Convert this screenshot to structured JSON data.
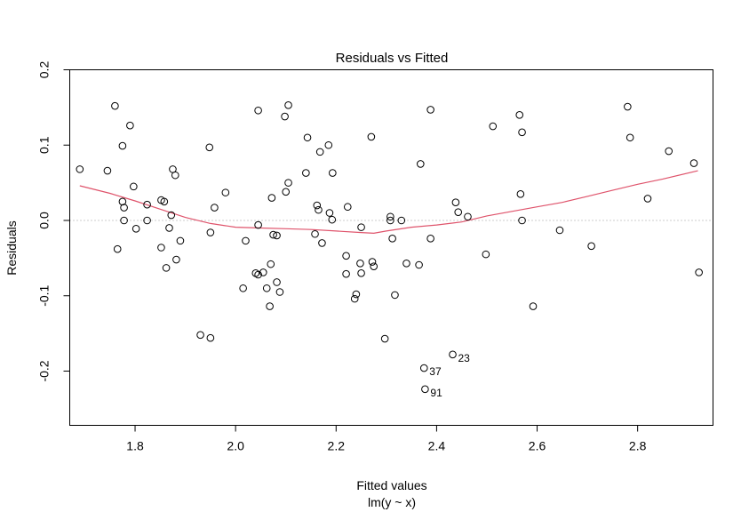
{
  "chart_data": {
    "type": "scatter",
    "title": "Residuals vs Fitted",
    "xlabel": "Fitted values",
    "subtitle": "lm(y ~ x)",
    "ylabel": "Residuals",
    "xlim": [
      1.67,
      2.95
    ],
    "ylim": [
      -0.272,
      0.2
    ],
    "xticks": [
      1.8,
      2.0,
      2.2,
      2.4,
      2.6,
      2.8
    ],
    "xtick_labels": [
      "1.8",
      "2.0",
      "2.2",
      "2.4",
      "2.6",
      "2.8"
    ],
    "yticks": [
      -0.2,
      -0.1,
      0.0,
      0.1,
      0.2
    ],
    "ytick_labels": [
      "-0.2",
      "-0.1",
      "0.0",
      "0.1",
      "0.2"
    ],
    "reference_line": {
      "y": 0,
      "style": "dotted",
      "color": "#999999"
    },
    "smoother_color": "#DF536B",
    "points": [
      {
        "x": 1.69,
        "y": 0.068
      },
      {
        "x": 1.745,
        "y": 0.066
      },
      {
        "x": 1.76,
        "y": 0.152
      },
      {
        "x": 1.765,
        "y": -0.038
      },
      {
        "x": 1.775,
        "y": 0.099
      },
      {
        "x": 1.775,
        "y": 0.025
      },
      {
        "x": 1.778,
        "y": 0.017
      },
      {
        "x": 1.778,
        "y": 0.0
      },
      {
        "x": 1.79,
        "y": 0.126
      },
      {
        "x": 1.797,
        "y": 0.045
      },
      {
        "x": 1.802,
        "y": -0.011
      },
      {
        "x": 1.824,
        "y": 0.021
      },
      {
        "x": 1.824,
        "y": 0.0
      },
      {
        "x": 1.852,
        "y": 0.027
      },
      {
        "x": 1.852,
        "y": -0.036
      },
      {
        "x": 1.858,
        "y": 0.025
      },
      {
        "x": 1.862,
        "y": -0.063
      },
      {
        "x": 1.868,
        "y": -0.01
      },
      {
        "x": 1.872,
        "y": 0.007
      },
      {
        "x": 1.875,
        "y": 0.068
      },
      {
        "x": 1.88,
        "y": 0.06
      },
      {
        "x": 1.882,
        "y": -0.052
      },
      {
        "x": 1.89,
        "y": -0.027
      },
      {
        "x": 1.93,
        "y": -0.152
      },
      {
        "x": 1.948,
        "y": 0.097
      },
      {
        "x": 1.95,
        "y": -0.016
      },
      {
        "x": 1.95,
        "y": -0.156
      },
      {
        "x": 1.958,
        "y": 0.017
      },
      {
        "x": 1.98,
        "y": 0.037
      },
      {
        "x": 2.015,
        "y": -0.09
      },
      {
        "x": 2.02,
        "y": -0.027
      },
      {
        "x": 2.04,
        "y": -0.07
      },
      {
        "x": 2.045,
        "y": -0.072
      },
      {
        "x": 2.045,
        "y": 0.146
      },
      {
        "x": 2.045,
        "y": -0.006
      },
      {
        "x": 2.055,
        "y": -0.069
      },
      {
        "x": 2.062,
        "y": -0.09
      },
      {
        "x": 2.068,
        "y": -0.114
      },
      {
        "x": 2.07,
        "y": -0.058
      },
      {
        "x": 2.072,
        "y": 0.03
      },
      {
        "x": 2.075,
        "y": -0.019
      },
      {
        "x": 2.082,
        "y": -0.02
      },
      {
        "x": 2.082,
        "y": -0.082
      },
      {
        "x": 2.088,
        "y": -0.095
      },
      {
        "x": 2.098,
        "y": 0.138
      },
      {
        "x": 2.1,
        "y": 0.038
      },
      {
        "x": 2.105,
        "y": 0.05
      },
      {
        "x": 2.105,
        "y": 0.153
      },
      {
        "x": 2.14,
        "y": 0.063
      },
      {
        "x": 2.143,
        "y": 0.11
      },
      {
        "x": 2.158,
        "y": -0.018
      },
      {
        "x": 2.162,
        "y": 0.02
      },
      {
        "x": 2.165,
        "y": 0.014
      },
      {
        "x": 2.168,
        "y": 0.091
      },
      {
        "x": 2.172,
        "y": -0.03
      },
      {
        "x": 2.185,
        "y": 0.1
      },
      {
        "x": 2.187,
        "y": 0.01
      },
      {
        "x": 2.192,
        "y": 0.001
      },
      {
        "x": 2.193,
        "y": 0.063
      },
      {
        "x": 2.22,
        "y": -0.047
      },
      {
        "x": 2.22,
        "y": -0.071
      },
      {
        "x": 2.223,
        "y": 0.018
      },
      {
        "x": 2.237,
        "y": -0.104
      },
      {
        "x": 2.24,
        "y": -0.098
      },
      {
        "x": 2.248,
        "y": -0.057
      },
      {
        "x": 2.25,
        "y": -0.07
      },
      {
        "x": 2.25,
        "y": -0.009
      },
      {
        "x": 2.27,
        "y": 0.111
      },
      {
        "x": 2.272,
        "y": -0.055
      },
      {
        "x": 2.275,
        "y": -0.061
      },
      {
        "x": 2.297,
        "y": -0.157
      },
      {
        "x": 2.308,
        "y": 0.005
      },
      {
        "x": 2.308,
        "y": 0.0
      },
      {
        "x": 2.312,
        "y": -0.024
      },
      {
        "x": 2.317,
        "y": -0.099
      },
      {
        "x": 2.33,
        "y": 0.0
      },
      {
        "x": 2.34,
        "y": -0.057
      },
      {
        "x": 2.365,
        "y": -0.059
      },
      {
        "x": 2.368,
        "y": 0.075
      },
      {
        "x": 2.375,
        "y": -0.196
      },
      {
        "x": 2.377,
        "y": -0.224
      },
      {
        "x": 2.388,
        "y": 0.147
      },
      {
        "x": 2.388,
        "y": -0.024
      },
      {
        "x": 2.432,
        "y": -0.178
      },
      {
        "x": 2.438,
        "y": 0.024
      },
      {
        "x": 2.443,
        "y": 0.011
      },
      {
        "x": 2.462,
        "y": 0.005
      },
      {
        "x": 2.498,
        "y": -0.045
      },
      {
        "x": 2.512,
        "y": 0.125
      },
      {
        "x": 2.565,
        "y": 0.14
      },
      {
        "x": 2.567,
        "y": 0.035
      },
      {
        "x": 2.57,
        "y": 0.117
      },
      {
        "x": 2.57,
        "y": 0.0
      },
      {
        "x": 2.592,
        "y": -0.114
      },
      {
        "x": 2.645,
        "y": -0.013
      },
      {
        "x": 2.708,
        "y": -0.034
      },
      {
        "x": 2.78,
        "y": 0.151
      },
      {
        "x": 2.785,
        "y": 0.11
      },
      {
        "x": 2.82,
        "y": 0.029
      },
      {
        "x": 2.862,
        "y": 0.092
      },
      {
        "x": 2.912,
        "y": 0.076
      },
      {
        "x": 2.922,
        "y": -0.069
      }
    ],
    "smoother": [
      {
        "x": 1.69,
        "y": 0.046
      },
      {
        "x": 1.75,
        "y": 0.036
      },
      {
        "x": 1.8,
        "y": 0.026
      },
      {
        "x": 1.85,
        "y": 0.015
      },
      {
        "x": 1.9,
        "y": 0.004
      },
      {
        "x": 1.95,
        "y": -0.004
      },
      {
        "x": 2.0,
        "y": -0.009
      },
      {
        "x": 2.05,
        "y": -0.01
      },
      {
        "x": 2.1,
        "y": -0.011
      },
      {
        "x": 2.15,
        "y": -0.012
      },
      {
        "x": 2.2,
        "y": -0.014
      },
      {
        "x": 2.25,
        "y": -0.016
      },
      {
        "x": 2.275,
        "y": -0.017
      },
      {
        "x": 2.3,
        "y": -0.014
      },
      {
        "x": 2.35,
        "y": -0.009
      },
      {
        "x": 2.4,
        "y": -0.006
      },
      {
        "x": 2.45,
        "y": -0.002
      },
      {
        "x": 2.5,
        "y": 0.006
      },
      {
        "x": 2.55,
        "y": 0.012
      },
      {
        "x": 2.6,
        "y": 0.018
      },
      {
        "x": 2.65,
        "y": 0.024
      },
      {
        "x": 2.7,
        "y": 0.032
      },
      {
        "x": 2.75,
        "y": 0.04
      },
      {
        "x": 2.8,
        "y": 0.048
      },
      {
        "x": 2.85,
        "y": 0.055
      },
      {
        "x": 2.92,
        "y": 0.066
      }
    ],
    "annotations": [
      {
        "label": "23",
        "x": 2.432,
        "y": -0.178
      },
      {
        "label": "37",
        "x": 2.375,
        "y": -0.196
      },
      {
        "label": "91",
        "x": 2.377,
        "y": -0.224
      }
    ]
  }
}
